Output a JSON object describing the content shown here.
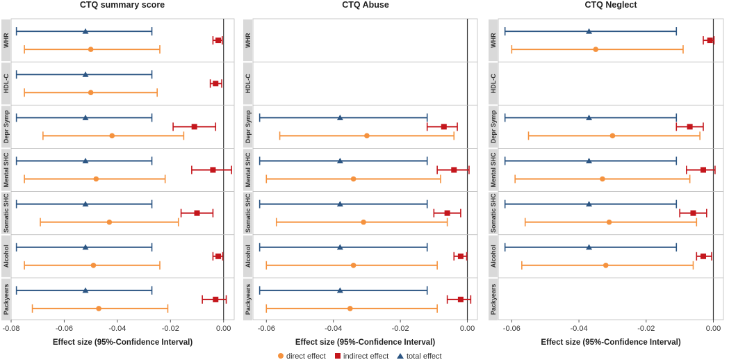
{
  "chart_data": {
    "type": "forest",
    "xlabel": "Effect size (95%-Confidence Interval)",
    "outcomes": [
      "WHR",
      "HDL-C",
      "Depr Symp",
      "Mental SHC",
      "Somatic SHC",
      "Alcohol",
      "Packyears"
    ],
    "legend": [
      {
        "key": "direct",
        "label": "direct effect",
        "color": "#f5923e",
        "marker": "circle"
      },
      {
        "key": "indirect",
        "label": "indirect effect",
        "color": "#c4161c",
        "marker": "square"
      },
      {
        "key": "total",
        "label": "total effect",
        "color": "#2b5583",
        "marker": "triangle"
      }
    ],
    "panels": [
      {
        "title": "CTQ summary score",
        "xlim": [
          -0.08,
          0.004
        ],
        "ticks": [
          -0.08,
          -0.06,
          -0.04,
          -0.02,
          0.0
        ],
        "tick_labels": [
          "-0.08",
          "-0.06",
          "-0.04",
          "-0.02",
          "0.00"
        ],
        "rows": [
          {
            "outcome": "WHR",
            "total": [
              -0.052,
              -0.078,
              -0.027
            ],
            "indirect": [
              -0.002,
              -0.004,
              -0.0005
            ],
            "direct": [
              -0.05,
              -0.075,
              -0.024
            ]
          },
          {
            "outcome": "HDL-C",
            "total": [
              -0.052,
              -0.078,
              -0.027
            ],
            "indirect": [
              -0.003,
              -0.005,
              -0.0007
            ],
            "direct": [
              -0.05,
              -0.075,
              -0.025
            ]
          },
          {
            "outcome": "Depr Symp",
            "total": [
              -0.052,
              -0.078,
              -0.027
            ],
            "indirect": [
              -0.011,
              -0.019,
              -0.003
            ],
            "direct": [
              -0.042,
              -0.068,
              -0.015
            ]
          },
          {
            "outcome": "Mental SHC",
            "total": [
              -0.052,
              -0.078,
              -0.027
            ],
            "indirect": [
              -0.004,
              -0.012,
              0.003
            ],
            "direct": [
              -0.048,
              -0.075,
              -0.022
            ]
          },
          {
            "outcome": "Somatic SHC",
            "total": [
              -0.052,
              -0.078,
              -0.027
            ],
            "indirect": [
              -0.01,
              -0.016,
              -0.004
            ],
            "direct": [
              -0.043,
              -0.069,
              -0.017
            ]
          },
          {
            "outcome": "Alcohol",
            "total": [
              -0.052,
              -0.078,
              -0.027
            ],
            "indirect": [
              -0.002,
              -0.004,
              -0.0003
            ],
            "direct": [
              -0.049,
              -0.075,
              -0.024
            ]
          },
          {
            "outcome": "Packyears",
            "total": [
              -0.052,
              -0.078,
              -0.027
            ],
            "indirect": [
              -0.003,
              -0.008,
              0.001
            ],
            "direct": [
              -0.047,
              -0.072,
              -0.021
            ]
          }
        ]
      },
      {
        "title": "CTQ Abuse",
        "xlim": [
          -0.064,
          0.003
        ],
        "ticks": [
          -0.06,
          -0.04,
          -0.02,
          0.0
        ],
        "tick_labels": [
          "-0.06",
          "-0.04",
          "-0.02",
          "0.00"
        ],
        "rows": [
          {
            "outcome": "WHR"
          },
          {
            "outcome": "HDL-C"
          },
          {
            "outcome": "Depr Symp",
            "total": [
              -0.038,
              -0.062,
              -0.012
            ],
            "indirect": [
              -0.007,
              -0.012,
              -0.003
            ],
            "direct": [
              -0.03,
              -0.056,
              -0.004
            ]
          },
          {
            "outcome": "Mental SHC",
            "total": [
              -0.038,
              -0.062,
              -0.012
            ],
            "indirect": [
              -0.004,
              -0.009,
              0.0005
            ],
            "direct": [
              -0.034,
              -0.06,
              -0.008
            ]
          },
          {
            "outcome": "Somatic SHC",
            "total": [
              -0.038,
              -0.062,
              -0.012
            ],
            "indirect": [
              -0.006,
              -0.01,
              -0.002
            ],
            "direct": [
              -0.031,
              -0.057,
              -0.006
            ]
          },
          {
            "outcome": "Alcohol",
            "total": [
              -0.038,
              -0.062,
              -0.012
            ],
            "indirect": [
              -0.002,
              -0.004,
              -0.0002
            ],
            "direct": [
              -0.034,
              -0.06,
              -0.009
            ]
          },
          {
            "outcome": "Packyears",
            "total": [
              -0.038,
              -0.062,
              -0.012
            ],
            "indirect": [
              -0.002,
              -0.006,
              0.001
            ],
            "direct": [
              -0.035,
              -0.06,
              -0.009
            ]
          }
        ]
      },
      {
        "title": "CTQ Neglect",
        "xlim": [
          -0.064,
          0.003
        ],
        "ticks": [
          -0.06,
          -0.04,
          -0.02,
          0.0
        ],
        "tick_labels": [
          "-0.06",
          "-0.04",
          "-0.02",
          "0.00"
        ],
        "rows": [
          {
            "outcome": "WHR",
            "total": [
              -0.037,
              -0.062,
              -0.011
            ],
            "indirect": [
              -0.001,
              -0.003,
              0.0002
            ],
            "direct": [
              -0.035,
              -0.06,
              -0.009
            ]
          },
          {
            "outcome": "HDL-C"
          },
          {
            "outcome": "Depr Symp",
            "total": [
              -0.037,
              -0.062,
              -0.011
            ],
            "indirect": [
              -0.007,
              -0.011,
              -0.003
            ],
            "direct": [
              -0.03,
              -0.055,
              -0.004
            ]
          },
          {
            "outcome": "Mental SHC",
            "total": [
              -0.037,
              -0.062,
              -0.011
            ],
            "indirect": [
              -0.003,
              -0.008,
              0.0005
            ],
            "direct": [
              -0.033,
              -0.059,
              -0.007
            ]
          },
          {
            "outcome": "Somatic SHC",
            "total": [
              -0.037,
              -0.062,
              -0.011
            ],
            "indirect": [
              -0.006,
              -0.01,
              -0.002
            ],
            "direct": [
              -0.031,
              -0.056,
              -0.005
            ]
          },
          {
            "outcome": "Alcohol",
            "total": [
              -0.037,
              -0.062,
              -0.011
            ],
            "indirect": [
              -0.003,
              -0.005,
              -0.0005
            ],
            "direct": [
              -0.032,
              -0.057,
              -0.006
            ]
          },
          {
            "outcome": "Packyears"
          }
        ]
      }
    ]
  }
}
